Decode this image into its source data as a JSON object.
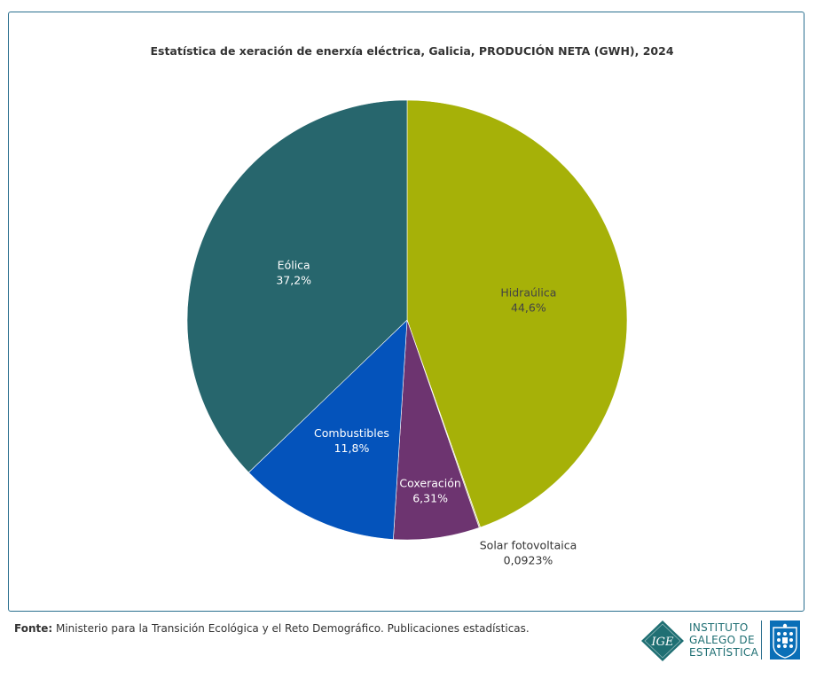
{
  "chart_data": {
    "type": "pie",
    "title": "Estatística de xeración de enerxía eléctrica, Galicia, PRODUCIÓN NETA (GWH), 2024",
    "slices": [
      {
        "label": "Hidraúlica",
        "value": 44.6,
        "value_label": "44,6%",
        "color": "#a6b108",
        "label_color": "#444444"
      },
      {
        "label": "Solar fotovoltaica",
        "value": 0.0923,
        "value_label": "0,0923%",
        "color": "#c9c98a",
        "label_color": "#333333"
      },
      {
        "label": "Coxeración",
        "value": 6.31,
        "value_label": "6,31%",
        "color": "#6d3470",
        "label_color": "#ffffff"
      },
      {
        "label": "Combustibles",
        "value": 11.8,
        "value_label": "11,8%",
        "color": "#0453bb",
        "label_color": "#ffffff"
      },
      {
        "label": "Eólica",
        "value": 37.2,
        "value_label": "37,2%",
        "color": "#27666d",
        "label_color": "#ffffff"
      }
    ]
  },
  "footer": {
    "source_label": "Fonte:",
    "source_text": " Ministerio para la Transición Ecológica y el Reto Demográfico. Publicaciones estadísticas."
  },
  "logo": {
    "mark_text": "IGE",
    "line1": "INSTITUTO",
    "line2": "GALEGO DE",
    "line3": "ESTATÍSTICA"
  }
}
